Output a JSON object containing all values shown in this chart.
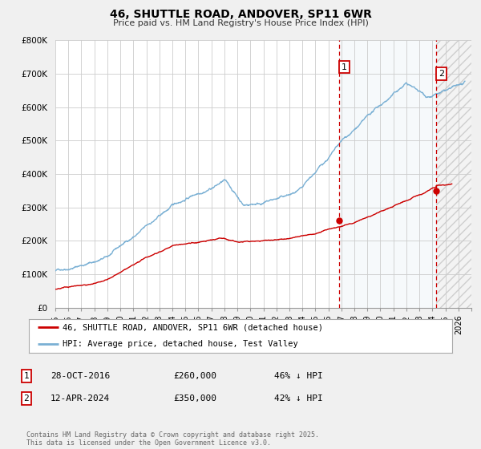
{
  "title": "46, SHUTTLE ROAD, ANDOVER, SP11 6WR",
  "subtitle": "Price paid vs. HM Land Registry's House Price Index (HPI)",
  "xlim": [
    1995,
    2027
  ],
  "ylim": [
    0,
    800000
  ],
  "yticks": [
    0,
    100000,
    200000,
    300000,
    400000,
    500000,
    600000,
    700000,
    800000
  ],
  "ytick_labels": [
    "£0",
    "£100K",
    "£200K",
    "£300K",
    "£400K",
    "£500K",
    "£600K",
    "£700K",
    "£800K"
  ],
  "hpi_color": "#7ab0d4",
  "price_color": "#cc0000",
  "vline_color": "#cc0000",
  "shade_color": "#dde8f3",
  "event1_x": 2016.82,
  "event2_x": 2024.28,
  "legend_entries": [
    {
      "label": "46, SHUTTLE ROAD, ANDOVER, SP11 6WR (detached house)",
      "color": "#cc0000"
    },
    {
      "label": "HPI: Average price, detached house, Test Valley",
      "color": "#7ab0d4"
    }
  ],
  "table_rows": [
    {
      "num": "1",
      "date": "28-OCT-2016",
      "price": "£260,000",
      "hpi": "46% ↓ HPI"
    },
    {
      "num": "2",
      "date": "12-APR-2024",
      "price": "£350,000",
      "hpi": "42% ↓ HPI"
    }
  ],
  "footnote": "Contains HM Land Registry data © Crown copyright and database right 2025.\nThis data is licensed under the Open Government Licence v3.0.",
  "background_color": "#f0f0f0",
  "plot_bg_color": "#ffffff"
}
